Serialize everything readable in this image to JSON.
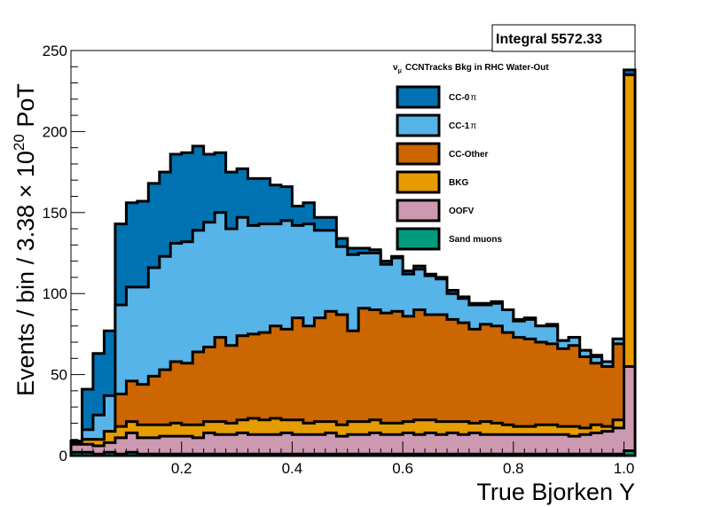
{
  "chart_data": {
    "type": "area",
    "stacked": true,
    "header": "CCNTracks Bkg in RHC Water-Out",
    "header_prefix": "ν",
    "header_prefix_sub": "μ",
    "stats_label": "Integral 5572.33",
    "xlabel": "True Bjorken Y",
    "ylabel_main": "Events / bin / 3.38 × 10",
    "ylabel_exp": "20",
    "ylabel_tail": " PoT",
    "xlim": [
      0,
      1.02
    ],
    "ylim": [
      0,
      250
    ],
    "bin_width": 0.02,
    "x_ticks": [
      {
        "value": 0.2,
        "label": "0.2"
      },
      {
        "value": 0.4,
        "label": "0.4"
      },
      {
        "value": 0.6,
        "label": "0.6"
      },
      {
        "value": 0.8,
        "label": "0.8"
      },
      {
        "value": 1.0,
        "label": "1.0"
      }
    ],
    "y_ticks": [
      {
        "value": 0,
        "label": "0"
      },
      {
        "value": 50,
        "label": "50"
      },
      {
        "value": 100,
        "label": "100"
      },
      {
        "value": 150,
        "label": "150"
      },
      {
        "value": 200,
        "label": "200"
      },
      {
        "value": 250,
        "label": "250"
      }
    ],
    "series": [
      {
        "name": "Sand muons",
        "color": "#009b7d",
        "values": [
          2,
          2,
          1,
          2,
          1,
          2,
          1,
          1,
          1,
          1,
          1,
          1,
          1,
          1,
          1,
          1,
          1,
          1,
          1,
          1,
          1,
          1,
          1,
          1,
          1,
          1,
          1,
          1,
          1,
          1,
          1,
          1,
          1,
          1,
          1,
          1,
          1,
          1,
          1,
          1,
          1,
          1,
          1,
          1,
          1,
          1,
          1,
          1,
          1,
          1,
          3
        ]
      },
      {
        "name": "OOFV",
        "color": "#cc99b0",
        "values": [
          5,
          5,
          5,
          6,
          10,
          12,
          10,
          10,
          11,
          11,
          11,
          10,
          13,
          12,
          12,
          13,
          12,
          12,
          12,
          13,
          12,
          12,
          12,
          13,
          11,
          12,
          12,
          13,
          12,
          12,
          13,
          12,
          13,
          12,
          13,
          12,
          13,
          12,
          12,
          12,
          12,
          12,
          12,
          12,
          12,
          11,
          12,
          13,
          14,
          16,
          52
        ]
      },
      {
        "name": "BKG",
        "color": "#e69c00",
        "values": [
          1,
          3,
          4,
          7,
          7,
          7,
          8,
          8,
          7,
          8,
          7,
          8,
          7,
          8,
          7,
          8,
          10,
          9,
          10,
          8,
          9,
          7,
          8,
          7,
          7,
          8,
          8,
          8,
          7,
          7,
          7,
          9,
          8,
          8,
          7,
          8,
          6,
          8,
          7,
          6,
          5,
          5,
          6,
          6,
          5,
          6,
          4,
          5,
          3,
          5,
          180
        ]
      },
      {
        "name": "CC-Other",
        "color": "#cc6600",
        "values": [
          0,
          0,
          0,
          0,
          20,
          25,
          25,
          30,
          34,
          38,
          38,
          45,
          46,
          52,
          48,
          52,
          52,
          54,
          57,
          56,
          63,
          60,
          64,
          68,
          68,
          56,
          70,
          68,
          68,
          69,
          65,
          68,
          65,
          66,
          63,
          61,
          58,
          60,
          60,
          57,
          55,
          54,
          51,
          50,
          48,
          50,
          44,
          38,
          37,
          47,
          0
        ]
      },
      {
        "name": "CC-1π",
        "color": "#56b4e9",
        "values": [
          0,
          6,
          15,
          22,
          55,
          58,
          60,
          67,
          70,
          73,
          75,
          75,
          77,
          77,
          72,
          73,
          67,
          67,
          63,
          67,
          57,
          63,
          54,
          50,
          42,
          47,
          34,
          35,
          30,
          33,
          26,
          25,
          24,
          22,
          16,
          15,
          15,
          12,
          14,
          14,
          10,
          12,
          10,
          11,
          5,
          5,
          4,
          4,
          3,
          3,
          0
        ]
      },
      {
        "name": "CC-0π",
        "color": "#0072b2",
        "values": [
          1,
          25,
          38,
          40,
          50,
          52,
          53,
          52,
          52,
          55,
          55,
          52,
          42,
          37,
          35,
          30,
          29,
          28,
          24,
          21,
          12,
          13,
          8,
          8,
          5,
          4,
          3,
          2,
          2,
          1,
          2,
          2,
          1,
          1,
          2,
          1,
          1,
          1,
          1,
          0,
          1,
          1,
          0,
          1,
          0,
          0,
          0,
          1,
          0,
          0,
          3
        ]
      }
    ],
    "legend": [
      {
        "name": "CC-0",
        "suffix": "π",
        "color": "#0072b2"
      },
      {
        "name": "CC-1",
        "suffix": "π",
        "color": "#56b4e9"
      },
      {
        "name": "CC-Other",
        "suffix": "",
        "color": "#cc6600"
      },
      {
        "name": "BKG",
        "suffix": "",
        "color": "#e69c00"
      },
      {
        "name": "OOFV",
        "suffix": "",
        "color": "#cc99b0"
      },
      {
        "name": "Sand muons",
        "suffix": "",
        "color": "#009b7d"
      }
    ]
  }
}
